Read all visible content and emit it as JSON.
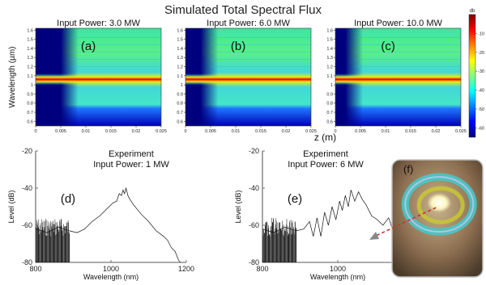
{
  "figure": {
    "title": "Simulated Total Spectral Flux",
    "colors": {
      "colormap": [
        "#00007f",
        "#0000ff",
        "#0080ff",
        "#00ffff",
        "#80ff80",
        "#ffff00",
        "#ff8000",
        "#ff0000",
        "#800000"
      ],
      "ring_outer": "#46c8c8",
      "ring_inner": "#c8c832",
      "ring_core": "#ffffff",
      "arrow": "#c0392b"
    }
  },
  "chart_data": [
    {
      "id": "a",
      "type": "heatmap",
      "panel_label": "(a)",
      "title": "Input Power: 3.0 MW",
      "ylabel": "Wavelength (µm)",
      "xlabel": "",
      "x_ticks": [
        "0",
        "0.005",
        "0.01",
        "0.015",
        "0.02",
        "0.025"
      ],
      "y_ticks": [
        "1.6",
        "1.5",
        "1.4",
        "1.3",
        "1.2",
        "1.1",
        "1",
        "0.9",
        "0.8",
        "0.7",
        "0.6"
      ],
      "xlim": [
        0,
        0.025
      ],
      "ylim": [
        0.55,
        1.62
      ],
      "broadening_onset_z": 0.007
    },
    {
      "id": "b",
      "type": "heatmap",
      "panel_label": "(b)",
      "title": "Input Power: 6.0 MW",
      "ylabel": "",
      "xlabel": "z (m)",
      "x_ticks": [
        "0",
        "0.005",
        "0.01",
        "0.015",
        "0.02",
        "0.025"
      ],
      "y_ticks": [
        "1.6",
        "1.5",
        "1.4",
        "1.3",
        "1.2",
        "1.1",
        "1",
        "0.9",
        "0.8",
        "0.7",
        "0.6"
      ],
      "xlim": [
        0,
        0.025
      ],
      "ylim": [
        0.55,
        1.62
      ],
      "broadening_onset_z": 0.005
    },
    {
      "id": "c",
      "type": "heatmap",
      "panel_label": "(c)",
      "title": "Input Power: 10.0 MW",
      "ylabel": "",
      "xlabel": "",
      "x_ticks": [
        "0",
        "0.005",
        "0.01",
        "0.015",
        "0.02",
        "0.025"
      ],
      "y_ticks": [
        "1.6",
        "1.5",
        "1.4",
        "1.3",
        "1.2",
        "1.1",
        "1",
        "0.9",
        "0.8",
        "0.7",
        "0.6"
      ],
      "xlim": [
        0,
        0.025
      ],
      "ylim": [
        0.55,
        1.62
      ],
      "broadening_onset_z": 0.004
    },
    {
      "id": "colorbar",
      "type": "heatmap",
      "unit": "db",
      "ticks": [
        "-10",
        "-20",
        "-30",
        "-40",
        "-50",
        "-60"
      ],
      "range": [
        -65,
        0
      ]
    },
    {
      "id": "d",
      "type": "line",
      "panel_label": "(d)",
      "title": "Experiment",
      "subtitle": "Input Power: 1 MW",
      "xlabel": "Wavelength (nm)",
      "ylabel": "Level (dB)",
      "x_ticks": [
        "800",
        "1000",
        "1200"
      ],
      "y_ticks": [
        "-20",
        "-40",
        "-60",
        "-80"
      ],
      "xlim": [
        800,
        1200
      ],
      "ylim": [
        -80,
        -20
      ],
      "x": [
        800,
        830,
        860,
        890,
        910,
        930,
        950,
        970,
        990,
        1005,
        1015,
        1022,
        1028,
        1032,
        1036,
        1040,
        1045,
        1050,
        1060,
        1080,
        1100,
        1120,
        1140,
        1150,
        1160,
        1170,
        1180
      ],
      "y": [
        -62,
        -64,
        -61,
        -63,
        -64,
        -62,
        -58,
        -55,
        -51,
        -48,
        -47,
        -43,
        -44,
        -41,
        -43,
        -40,
        -44,
        -46,
        -49,
        -54,
        -58,
        -63,
        -66,
        -68,
        -72,
        -74,
        -79
      ]
    },
    {
      "id": "e",
      "type": "line",
      "panel_label": "(e)",
      "title": "Experiment",
      "subtitle": "Input Power: 6 MW",
      "xlabel": "Wavelength (nm)",
      "ylabel": "Level (dB)",
      "x_ticks": [
        "800",
        "1000",
        "1200"
      ],
      "y_ticks": [
        "-20",
        "-40",
        "-60",
        "-80"
      ],
      "xlim": [
        800,
        1200
      ],
      "ylim": [
        -80,
        -20
      ],
      "x": [
        800,
        830,
        860,
        890,
        910,
        925,
        935,
        945,
        955,
        965,
        975,
        985,
        995,
        1005,
        1012,
        1020,
        1028,
        1035,
        1045,
        1055,
        1065,
        1075,
        1090,
        1105,
        1120,
        1135,
        1150,
        1160,
        1170,
        1180
      ],
      "y": [
        -62,
        -64,
        -61,
        -63,
        -62,
        -58,
        -66,
        -56,
        -66,
        -53,
        -60,
        -50,
        -57,
        -47,
        -52,
        -44,
        -50,
        -41,
        -47,
        -42,
        -46,
        -49,
        -55,
        -57,
        -60,
        -56,
        -65,
        -66,
        -68,
        -69
      ]
    },
    {
      "id": "f",
      "type": "image",
      "panel_label": "(f)",
      "description_hidden": false
    }
  ]
}
